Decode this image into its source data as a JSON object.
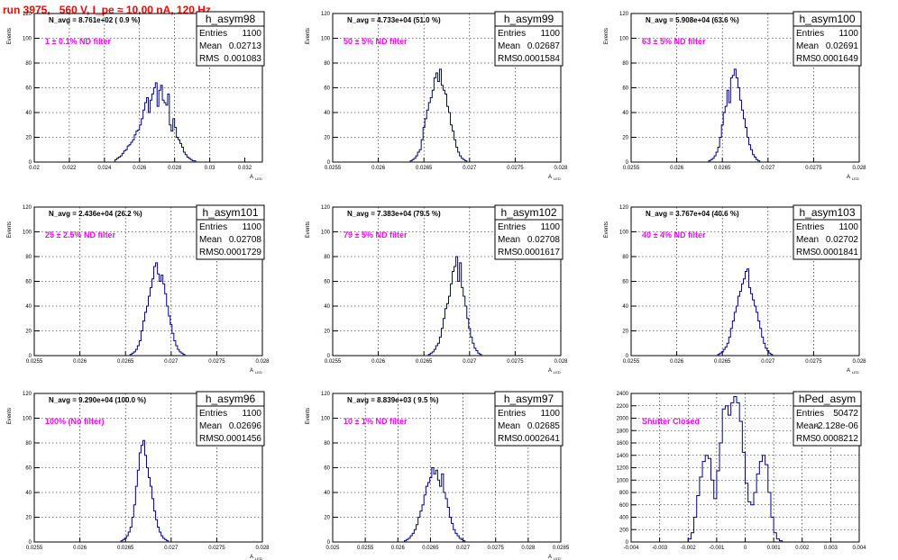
{
  "run_title": "run 3975,   560 V, I_pe ≈ 10.00 nA, 120 Hz",
  "chart_data": [
    {
      "type": "bar",
      "name": "h_asym98",
      "title": "h_asym98",
      "avg_label": "N_avg = 8.761e+02 ( 0.9 %)",
      "filter_label": "1 ± 0.1% ND filter",
      "ylabel": "Events",
      "xlabel": "A",
      "xlabel_sub": "LED",
      "stats": [
        {
          "name": "Entries",
          "value": "1100"
        },
        {
          "name": "Mean",
          "value": "0.02713"
        },
        {
          "name": "RMS",
          "value": "0.001083"
        }
      ],
      "xlim": [
        0.02,
        0.033
      ],
      "ylim": [
        0,
        120
      ],
      "xticks": [
        0.02,
        0.022,
        0.024,
        0.026,
        0.028,
        0.03,
        0.032
      ],
      "xtick_labels": [
        "0.02",
        "0.022",
        "0.024",
        "0.026",
        "0.028",
        "0.03",
        "0.032"
      ],
      "yticks": [
        0,
        20,
        40,
        60,
        80,
        100,
        120
      ],
      "ytick_labels": [
        "0",
        "20",
        "40",
        "60",
        "80",
        "100",
        "120"
      ],
      "bin_start": 0.0246,
      "bin_width": 0.0001,
      "values": [
        2,
        3,
        4,
        5,
        7,
        9,
        10,
        13,
        14,
        16,
        18,
        22,
        25,
        26,
        30,
        35,
        42,
        48,
        52,
        40,
        50,
        55,
        60,
        64,
        45,
        58,
        62,
        50,
        48,
        46,
        55,
        30,
        25,
        35,
        28,
        20,
        18,
        15,
        12,
        8,
        6,
        4,
        3,
        2,
        1,
        1
      ]
    },
    {
      "type": "bar",
      "name": "h_asym99",
      "title": "h_asym99",
      "avg_label": "N_avg = 4.733e+04 (51.0 %)",
      "filter_label": "50 ± 5% ND filter",
      "ylabel": "Events",
      "xlabel": "A",
      "xlabel_sub": "LED",
      "stats": [
        {
          "name": "Entries",
          "value": "1100"
        },
        {
          "name": "Mean",
          "value": "0.02687"
        },
        {
          "name": "RMS",
          "value": "0.0001584"
        }
      ],
      "xlim": [
        0.0255,
        0.028
      ],
      "ylim": [
        0,
        120
      ],
      "xticks": [
        0.0255,
        0.026,
        0.0265,
        0.027,
        0.0275,
        0.028
      ],
      "xtick_labels": [
        "0.0255",
        "0.026",
        "0.0265",
        "0.027",
        "0.0275",
        "0.028"
      ],
      "yticks": [
        0,
        20,
        40,
        60,
        80,
        100,
        120
      ],
      "ytick_labels": [
        "0",
        "20",
        "40",
        "60",
        "80",
        "100",
        "120"
      ],
      "bin_start": 0.02635,
      "bin_width": 2e-05,
      "values": [
        1,
        2,
        3,
        5,
        8,
        10,
        18,
        28,
        35,
        42,
        48,
        52,
        58,
        68,
        72,
        65,
        75,
        62,
        58,
        55,
        45,
        40,
        30,
        25,
        18,
        12,
        8,
        5,
        3,
        2,
        1
      ]
    },
    {
      "type": "bar",
      "name": "h_asym100",
      "title": "h_asym100",
      "avg_label": "N_avg = 5.908e+04 (63.6 %)",
      "filter_label": "63 ± 5% ND filter",
      "ylabel": "Events",
      "xlabel": "A",
      "xlabel_sub": "LED",
      "stats": [
        {
          "name": "Entries",
          "value": "1100"
        },
        {
          "name": "Mean",
          "value": "0.02691"
        },
        {
          "name": "RMS",
          "value": "0.0001649"
        }
      ],
      "xlim": [
        0.0255,
        0.028
      ],
      "ylim": [
        0,
        120
      ],
      "xticks": [
        0.0255,
        0.026,
        0.0265,
        0.027,
        0.0275,
        0.028
      ],
      "xtick_labels": [
        "0.0255",
        "0.026",
        "0.0265",
        "0.027",
        "0.0275",
        "0.028"
      ],
      "yticks": [
        0,
        20,
        40,
        60,
        80,
        100,
        120
      ],
      "ytick_labels": [
        "0",
        "20",
        "40",
        "60",
        "80",
        "100",
        "120"
      ],
      "bin_start": 0.02635,
      "bin_width": 2e-05,
      "values": [
        1,
        2,
        3,
        5,
        8,
        12,
        20,
        30,
        40,
        45,
        58,
        48,
        68,
        70,
        75,
        68,
        60,
        50,
        42,
        35,
        28,
        20,
        14,
        10,
        6,
        4,
        2,
        1
      ]
    },
    {
      "type": "bar",
      "name": "h_asym101",
      "title": "h_asym101",
      "avg_label": "N_avg = 2.436e+04 (26.2 %)",
      "filter_label": "25 ± 2.5% ND filter",
      "ylabel": "Events",
      "xlabel": "A",
      "xlabel_sub": "LED",
      "stats": [
        {
          "name": "Entries",
          "value": "1100"
        },
        {
          "name": "Mean",
          "value": "0.02708"
        },
        {
          "name": "RMS",
          "value": "0.0001729"
        }
      ],
      "xlim": [
        0.0255,
        0.028
      ],
      "ylim": [
        0,
        120
      ],
      "xticks": [
        0.0255,
        0.026,
        0.0265,
        0.027,
        0.0275,
        0.028
      ],
      "xtick_labels": [
        "0.0255",
        "0.026",
        "0.0265",
        "0.027",
        "0.0275",
        "0.028"
      ],
      "yticks": [
        0,
        20,
        40,
        60,
        80,
        100,
        120
      ],
      "ytick_labels": [
        "0",
        "20",
        "40",
        "60",
        "80",
        "100",
        "120"
      ],
      "bin_start": 0.02655,
      "bin_width": 2e-05,
      "values": [
        1,
        2,
        3,
        5,
        8,
        12,
        20,
        28,
        35,
        40,
        48,
        55,
        62,
        72,
        75,
        66,
        60,
        65,
        58,
        50,
        40,
        32,
        25,
        18,
        12,
        8,
        5,
        3,
        2,
        1
      ]
    },
    {
      "type": "bar",
      "name": "h_asym102",
      "title": "h_asym102",
      "avg_label": "N_avg = 7.383e+04 (79.5 %)",
      "filter_label": "79 ± 5% ND filter",
      "ylabel": "Events",
      "xlabel": "A",
      "xlabel_sub": "LED",
      "stats": [
        {
          "name": "Entries",
          "value": "1100"
        },
        {
          "name": "Mean",
          "value": "0.02708"
        },
        {
          "name": "RMS",
          "value": "0.0001617"
        }
      ],
      "xlim": [
        0.0255,
        0.028
      ],
      "ylim": [
        0,
        120
      ],
      "xticks": [
        0.0255,
        0.026,
        0.0265,
        0.027,
        0.0275,
        0.028
      ],
      "xtick_labels": [
        "0.0255",
        "0.026",
        "0.0265",
        "0.027",
        "0.0275",
        "0.028"
      ],
      "yticks": [
        0,
        20,
        40,
        60,
        80,
        100,
        120
      ],
      "ytick_labels": [
        "0",
        "20",
        "40",
        "60",
        "80",
        "100",
        "120"
      ],
      "bin_start": 0.02655,
      "bin_width": 2e-05,
      "values": [
        1,
        2,
        3,
        5,
        8,
        10,
        15,
        22,
        30,
        38,
        42,
        48,
        58,
        68,
        72,
        80,
        60,
        75,
        55,
        48,
        40,
        30,
        22,
        15,
        10,
        6,
        4,
        2,
        1
      ]
    },
    {
      "type": "bar",
      "name": "h_asym103",
      "title": "h_asym103",
      "avg_label": "N_avg = 3.767e+04 (40.6 %)",
      "filter_label": "40 ± 4% ND filter",
      "ylabel": "Events",
      "xlabel": "A",
      "xlabel_sub": "LED",
      "stats": [
        {
          "name": "Entries",
          "value": "1100"
        },
        {
          "name": "Mean",
          "value": "0.02702"
        },
        {
          "name": "RMS",
          "value": "0.0001841"
        }
      ],
      "xlim": [
        0.0255,
        0.028
      ],
      "ylim": [
        0,
        120
      ],
      "xticks": [
        0.0255,
        0.026,
        0.0265,
        0.027,
        0.0275,
        0.028
      ],
      "xtick_labels": [
        "0.0255",
        "0.026",
        "0.0265",
        "0.027",
        "0.0275",
        "0.028"
      ],
      "yticks": [
        0,
        20,
        40,
        60,
        80,
        100,
        120
      ],
      "ytick_labels": [
        "0",
        "20",
        "40",
        "60",
        "80",
        "100",
        "120"
      ],
      "bin_start": 0.02645,
      "bin_width": 2e-05,
      "values": [
        1,
        2,
        3,
        5,
        7,
        10,
        15,
        22,
        28,
        35,
        40,
        48,
        52,
        58,
        62,
        68,
        70,
        55,
        50,
        45,
        40,
        35,
        28,
        22,
        15,
        10,
        6,
        4,
        2,
        1
      ]
    },
    {
      "type": "bar",
      "name": "h_asym96",
      "title": "h_asym96",
      "avg_label": "N_avg = 9.290e+04 (100.0 %)",
      "filter_label": "100% (No filter)",
      "ylabel": "Events",
      "xlabel": "A",
      "xlabel_sub": "LED",
      "stats": [
        {
          "name": "Entries",
          "value": "1100"
        },
        {
          "name": "Mean",
          "value": "0.02696"
        },
        {
          "name": "RMS",
          "value": "0.0001456"
        }
      ],
      "xlim": [
        0.0255,
        0.028
      ],
      "ylim": [
        0,
        120
      ],
      "xticks": [
        0.0255,
        0.026,
        0.0265,
        0.027,
        0.0275,
        0.028
      ],
      "xtick_labels": [
        "0.0255",
        "0.026",
        "0.0265",
        "0.027",
        "0.0275",
        "0.028"
      ],
      "yticks": [
        0,
        20,
        40,
        60,
        80,
        100,
        120
      ],
      "ytick_labels": [
        "0",
        "20",
        "40",
        "60",
        "80",
        "100",
        "120"
      ],
      "bin_start": 0.02645,
      "bin_width": 2e-05,
      "values": [
        1,
        2,
        3,
        5,
        8,
        12,
        20,
        30,
        45,
        58,
        72,
        78,
        82,
        70,
        60,
        52,
        45,
        35,
        25,
        18,
        12,
        8,
        5,
        3,
        2,
        1
      ]
    },
    {
      "type": "bar",
      "name": "h_asym97",
      "title": "h_asym97",
      "avg_label": "N_avg = 8.839e+03 ( 9.5 %)",
      "filter_label": "10 ± 1% ND filter",
      "ylabel": "Events",
      "xlabel": "A",
      "xlabel_sub": "LED",
      "stats": [
        {
          "name": "Entries",
          "value": "1100"
        },
        {
          "name": "Mean",
          "value": "0.02685"
        },
        {
          "name": "RMS",
          "value": "0.0002641"
        }
      ],
      "xlim": [
        0.025,
        0.0285
      ],
      "ylim": [
        0,
        120
      ],
      "xticks": [
        0.025,
        0.0255,
        0.026,
        0.0265,
        0.027,
        0.0275,
        0.028,
        0.0285
      ],
      "xtick_labels": [
        "0.025",
        "0.0255",
        "0.026",
        "0.0265",
        "0.027",
        "0.0275",
        "0.028",
        "0.0285"
      ],
      "yticks": [
        0,
        20,
        40,
        60,
        80,
        100,
        120
      ],
      "ytick_labels": [
        "0",
        "20",
        "40",
        "60",
        "80",
        "100",
        "120"
      ],
      "bin_start": 0.0261,
      "bin_width": 3e-05,
      "values": [
        1,
        2,
        3,
        5,
        7,
        10,
        14,
        20,
        25,
        30,
        38,
        45,
        48,
        52,
        60,
        55,
        58,
        50,
        45,
        55,
        40,
        35,
        28,
        20,
        15,
        10,
        7,
        5,
        3,
        2,
        1
      ]
    },
    {
      "type": "bar",
      "name": "hPed_asym",
      "title": "hPed_asym",
      "avg_label": "",
      "filter_label": "Shutter Closed",
      "ylabel": "",
      "xlabel": "",
      "xlabel_sub": "",
      "stats": [
        {
          "name": "Entries",
          "value": "50472"
        },
        {
          "name": "Mean",
          "value": "-2.128e-06"
        },
        {
          "name": "RMS",
          "value": "0.0008212"
        }
      ],
      "xlim": [
        -0.004,
        0.004
      ],
      "ylim": [
        0,
        2400
      ],
      "xticks": [
        -0.004,
        -0.003,
        -0.002,
        -0.001,
        0,
        0.001,
        0.002,
        0.003,
        0.004
      ],
      "xtick_labels": [
        "-0.004",
        "-0.003",
        "-0.002",
        "-0.001",
        "0",
        "0.001",
        "0.002",
        "0.003",
        "0.004"
      ],
      "yticks": [
        0,
        200,
        400,
        600,
        800,
        1000,
        1200,
        1400,
        1600,
        1800,
        2000,
        2200,
        2400
      ],
      "ytick_labels": [
        "0",
        "200",
        "400",
        "600",
        "800",
        "1000",
        "1200",
        "1400",
        "1600",
        "1800",
        "2000",
        "2200",
        "2400"
      ],
      "bin_start": -0.002,
      "bin_width": 0.0001,
      "values": [
        50,
        150,
        400,
        750,
        1050,
        1300,
        1400,
        1350,
        1000,
        700,
        1150,
        1600,
        2150,
        2200,
        2050,
        2250,
        2350,
        2250,
        1950,
        1450,
        950,
        650,
        600,
        800,
        1100,
        1300,
        1400,
        1250,
        800,
        400,
        150,
        50,
        20
      ]
    }
  ]
}
